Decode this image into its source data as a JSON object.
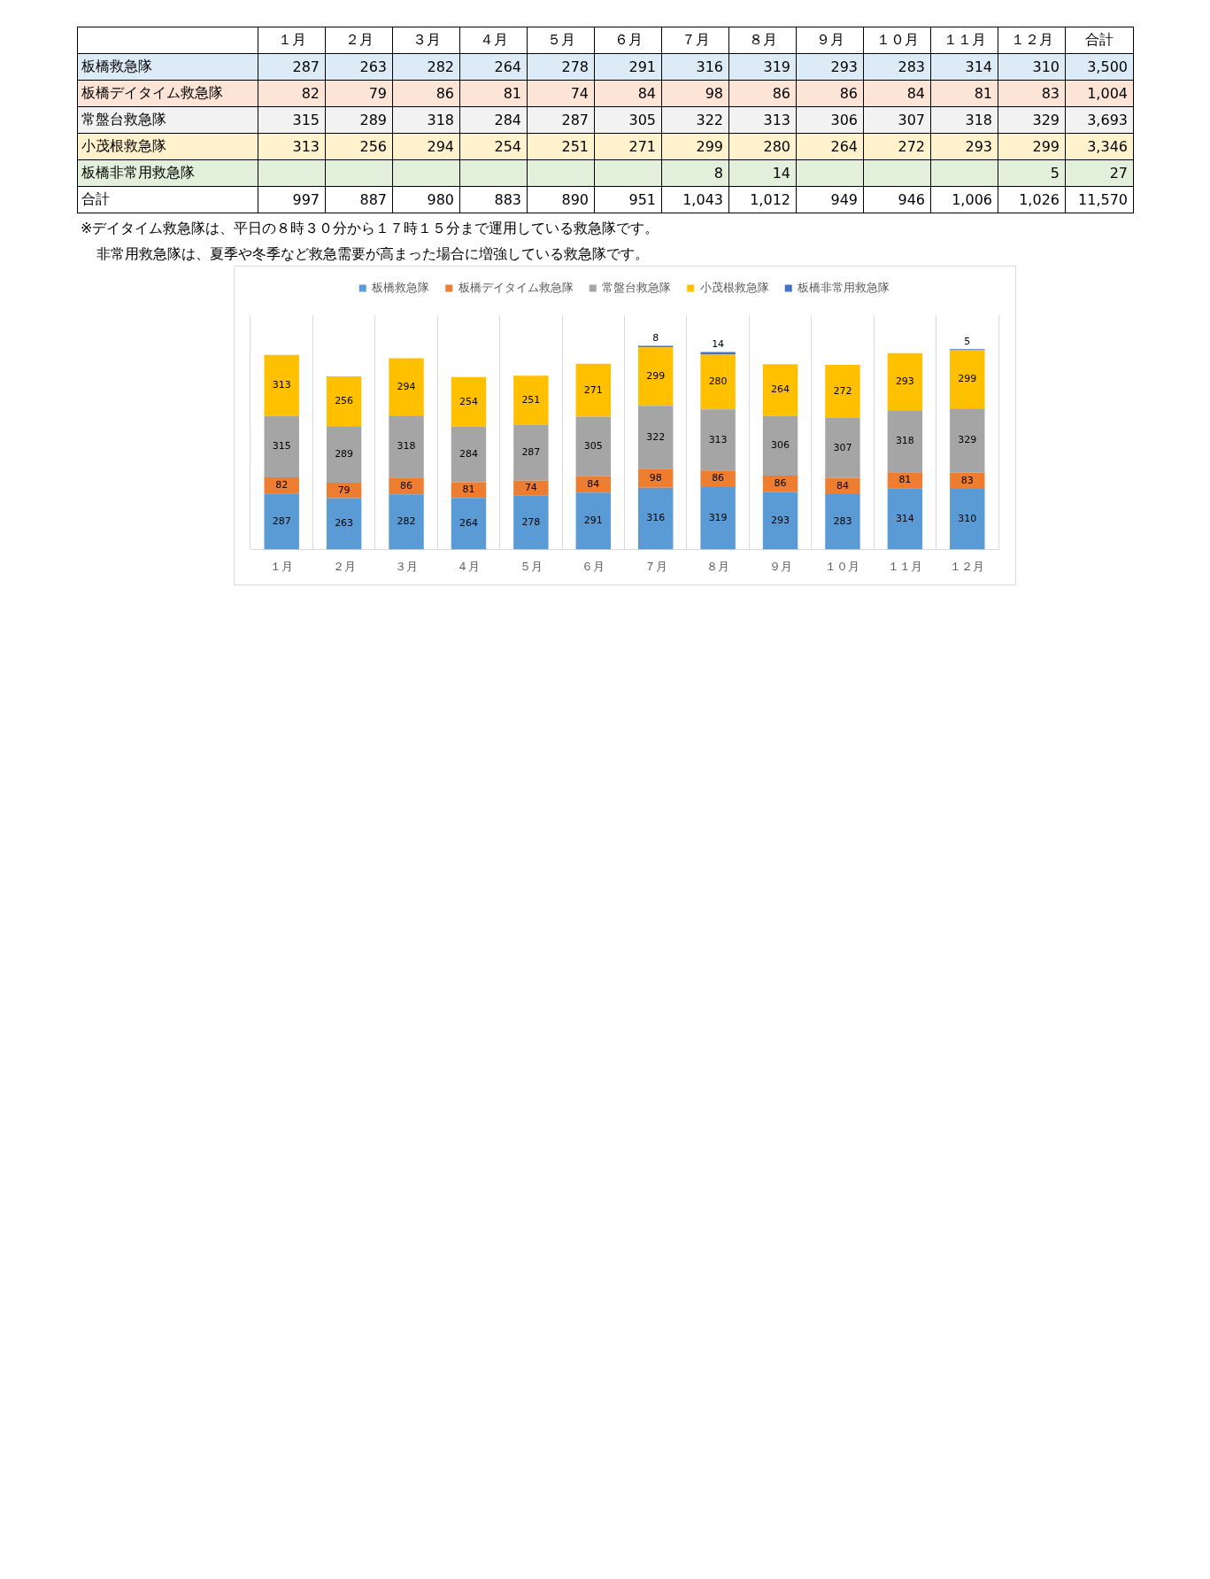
{
  "chart_data": [
    {
      "type": "heatmap",
      "categories": [
        "１月",
        "２月",
        "３月",
        "４月",
        "５月",
        "６月",
        "７月",
        "８月",
        "９月",
        "１０月",
        "１１月",
        "１２月",
        "合計"
      ],
      "y_categories": [
        "板橋救急隊",
        "板橋デイタイム救急隊",
        "常盤台救急隊",
        "小茂根救急隊",
        "板橋非常用救急隊",
        "合計"
      ],
      "colors": [
        "#ddebf7",
        "#fce4d6",
        "#f2f2f2",
        "#fff2cc",
        "#e2efda",
        "#ffffff"
      ],
      "cells": [
        [
          287,
          263,
          282,
          264,
          278,
          291,
          316,
          319,
          293,
          283,
          314,
          310,
          3500
        ],
        [
          82,
          79,
          86,
          81,
          74,
          84,
          98,
          86,
          86,
          84,
          81,
          83,
          1004
        ],
        [
          315,
          289,
          318,
          284,
          287,
          305,
          322,
          313,
          306,
          307,
          318,
          329,
          3693
        ],
        [
          313,
          256,
          294,
          254,
          251,
          271,
          299,
          280,
          264,
          272,
          293,
          299,
          3346
        ],
        [
          null,
          null,
          null,
          null,
          null,
          null,
          8,
          14,
          null,
          null,
          null,
          5,
          27
        ],
        [
          997,
          887,
          980,
          883,
          890,
          951,
          1043,
          1012,
          949,
          946,
          1006,
          1026,
          11570
        ]
      ],
      "cell_labels": [
        [
          "287",
          "263",
          "282",
          "264",
          "278",
          "291",
          "316",
          "319",
          "293",
          "283",
          "314",
          "310",
          "3,500"
        ],
        [
          "82",
          "79",
          "86",
          "81",
          "74",
          "84",
          "98",
          "86",
          "86",
          "84",
          "81",
          "83",
          "1,004"
        ],
        [
          "315",
          "289",
          "318",
          "284",
          "287",
          "305",
          "322",
          "313",
          "306",
          "307",
          "318",
          "329",
          "3,693"
        ],
        [
          "313",
          "256",
          "294",
          "254",
          "251",
          "271",
          "299",
          "280",
          "264",
          "272",
          "293",
          "299",
          "3,346"
        ],
        [
          null,
          null,
          null,
          null,
          null,
          null,
          "8",
          "14",
          null,
          null,
          null,
          "5",
          "27"
        ],
        [
          "997",
          "887",
          "980",
          "883",
          "890",
          "951",
          "1,043",
          "1,012",
          "949",
          "946",
          "1,006",
          "1,026",
          "11,570"
        ]
      ],
      "annotations": [
        "※デイタイム救急隊は、平日の８時３０分から１７時１５分まで運用している救急隊です。",
        "非常用救急隊は、夏季や冬季など救急需要が高まった場合に増強している救急隊です。"
      ]
    },
    {
      "type": "bar",
      "stacked": true,
      "categories": [
        "１月",
        "２月",
        "３月",
        "４月",
        "５月",
        "６月",
        "７月",
        "８月",
        "９月",
        "１０月",
        "１１月",
        "１２月"
      ],
      "series": [
        {
          "name": "板橋救急隊",
          "color": "#5b9bd5",
          "values": [
            287,
            263,
            282,
            264,
            278,
            291,
            316,
            319,
            293,
            283,
            314,
            310
          ]
        },
        {
          "name": "板橋デイタイム救急隊",
          "color": "#ed7d31",
          "values": [
            82,
            79,
            86,
            81,
            74,
            84,
            98,
            86,
            86,
            84,
            81,
            83
          ]
        },
        {
          "name": "常盤台救急隊",
          "color": "#a5a5a5",
          "values": [
            315,
            289,
            318,
            284,
            287,
            305,
            322,
            313,
            306,
            307,
            318,
            329
          ]
        },
        {
          "name": "小茂根救急隊",
          "color": "#ffc000",
          "values": [
            313,
            256,
            294,
            254,
            251,
            271,
            299,
            280,
            264,
            272,
            293,
            299
          ]
        },
        {
          "name": "板橋非常用救急隊",
          "color": "#4472c4",
          "values": [
            null,
            null,
            null,
            null,
            null,
            null,
            8,
            14,
            null,
            null,
            null,
            5
          ]
        }
      ],
      "data_labels": true,
      "legend": "top",
      "grid": "x",
      "tick_labels": "x"
    }
  ]
}
